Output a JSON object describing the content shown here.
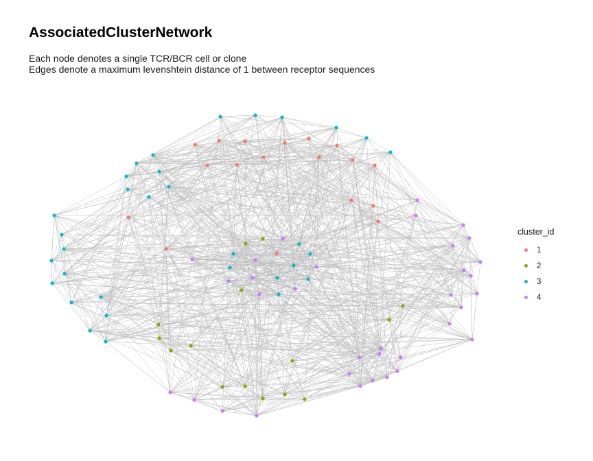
{
  "title": "AssociatedClusterNetwork",
  "subtitle": [
    "Each node denotes a single TCR/BCR cell or clone",
    "Edges denote a maximum levenshtein distance of 1 between receptor sequences"
  ],
  "legend": {
    "title": "cluster_id",
    "items": [
      {
        "label": "1",
        "color": "#F8766D"
      },
      {
        "label": "2",
        "color": "#7CAE00"
      },
      {
        "label": "3",
        "color": "#00BFC4"
      },
      {
        "label": "4",
        "color": "#C77CFF"
      }
    ]
  },
  "edge_color": "#bebebe"
}
